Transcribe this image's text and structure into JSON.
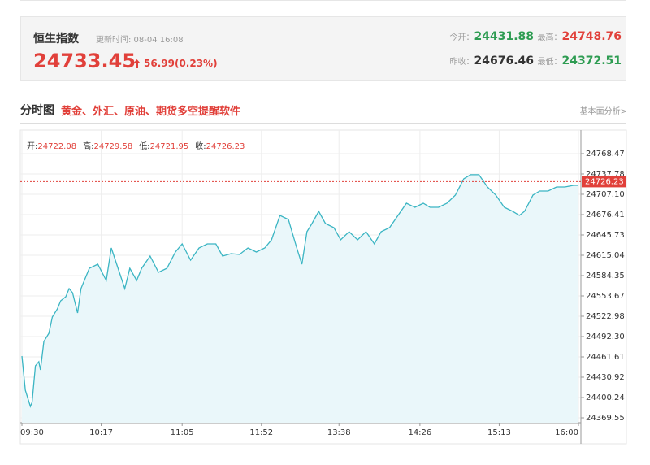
{
  "header": {
    "title": "恒生指数",
    "update_time": "更新时间: 08-04 16:08",
    "price": "24733.45",
    "change": "56.99(0.23%)",
    "open_label": "今开：",
    "open": "24431.88",
    "high_label": "最高：",
    "high": "24748.76",
    "prev_close_label": "昨收：",
    "prev_close": "24676.46",
    "low_label": "最低：",
    "low": "24372.51"
  },
  "section": {
    "title": "分时图",
    "link": "黄金、外汇、原油、期货多空提醒软件",
    "more": "基本面分析>"
  },
  "chart_data": {
    "type": "line",
    "color": "#3bb5c3",
    "fill": "#eaf7fa",
    "info": [
      {
        "label": "开:",
        "value": "24722.08"
      },
      {
        "label": "高:",
        "value": "24729.58"
      },
      {
        "label": "低:",
        "value": "24721.95"
      },
      {
        "label": "收:",
        "value": "24726.23"
      }
    ],
    "last_value": 24726.23,
    "x": [
      0,
      2,
      5,
      6,
      8,
      10,
      11,
      13,
      16,
      18,
      21,
      23,
      26,
      28,
      30,
      33,
      35,
      40,
      45,
      50,
      53,
      57,
      61,
      64,
      68,
      71,
      76,
      81,
      86,
      91,
      95,
      100,
      105,
      110,
      115,
      119,
      124,
      129,
      134,
      139,
      144,
      148,
      153,
      158,
      163,
      166,
      169,
      172,
      176,
      180,
      185,
      189,
      194,
      199,
      204,
      209,
      213,
      218,
      223,
      228,
      233,
      238,
      242,
      247,
      252,
      257,
      262,
      266,
      271,
      276,
      281,
      286,
      291,
      295,
      298,
      303,
      307,
      312,
      317,
      322,
      327,
      330
    ],
    "values": [
      24462.8,
      24411.3,
      24386.7,
      24392.9,
      24448.1,
      24454.2,
      24442.0,
      24484.9,
      24497.2,
      24521.7,
      24534.0,
      24546.3,
      24552.4,
      24564.7,
      24558.6,
      24527.9,
      24564.7,
      24595.4,
      24601.5,
      24577.0,
      24626.1,
      24595.4,
      24564.7,
      24595.4,
      24577.0,
      24595.4,
      24613.8,
      24589.2,
      24595.4,
      24619.9,
      24632.2,
      24607.7,
      24626.1,
      24632.2,
      24632.2,
      24613.8,
      24617.5,
      24616.3,
      24626.1,
      24619.9,
      24626.1,
      24638.3,
      24675.2,
      24669.0,
      24626.1,
      24601.5,
      24650.6,
      24662.9,
      24681.3,
      24662.9,
      24656.8,
      24638.3,
      24650.6,
      24638.3,
      24650.6,
      24632.2,
      24650.6,
      24656.8,
      24675.2,
      24693.6,
      24687.4,
      24693.6,
      24687.4,
      24687.4,
      24693.6,
      24705.8,
      24730.4,
      24736.6,
      24736.6,
      24718.1,
      24705.8,
      24687.4,
      24681.3,
      24675.2,
      24681.3,
      24705.8,
      24712.0,
      24712.0,
      24718.1,
      24718.1,
      24720.6,
      24720.6
    ],
    "xlim": [
      0,
      330
    ],
    "xticks": [
      {
        "value": 0,
        "label": "09:30"
      },
      {
        "value": 47,
        "label": "10:17"
      },
      {
        "value": 95,
        "label": "11:05"
      },
      {
        "value": 142,
        "label": "11:52"
      },
      {
        "value": 188,
        "label": "13:38"
      },
      {
        "value": 236,
        "label": "14:26"
      },
      {
        "value": 283,
        "label": "15:13"
      },
      {
        "value": 330,
        "label": "16:00"
      }
    ],
    "ylim": [
      24362.2,
      24797.9
    ],
    "yticks": [
      24768.47,
      24737.78,
      {
        "value": 24707.1,
        "label": "24707.10"
      },
      24676.41,
      24645.73,
      24615.04,
      24584.35,
      24553.67,
      24522.98,
      {
        "value": 24492.3,
        "label": "24492.30"
      },
      24461.61,
      24430.92,
      24400.24,
      24369.55
    ],
    "grid": true
  }
}
